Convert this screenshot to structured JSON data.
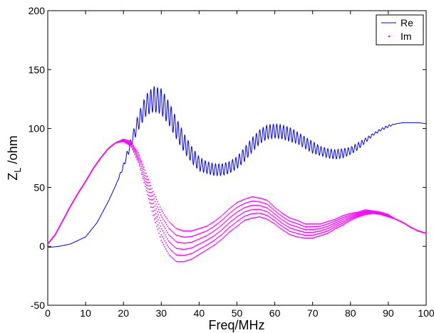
{
  "chart_data": {
    "type": "line",
    "title": "",
    "xlabel": "Freq/MHz",
    "ylabel_main": "Z",
    "ylabel_sub": "L",
    "ylabel_rest": " /ohm",
    "xlim": [
      0,
      100
    ],
    "ylim": [
      -50,
      200
    ],
    "xticks": [
      0,
      10,
      20,
      30,
      40,
      50,
      60,
      70,
      80,
      90,
      100
    ],
    "yticks": [
      -50,
      0,
      50,
      100,
      150,
      200
    ],
    "grid": false,
    "legend_position": "top-right",
    "series": [
      {
        "name": "Re",
        "color": "#0000ff",
        "style": "line",
        "x": [
          0,
          3,
          6,
          10,
          13,
          16,
          18,
          20,
          22,
          24,
          26,
          28,
          30,
          32,
          34,
          36,
          38,
          40,
          42,
          44,
          46,
          48,
          50,
          52,
          54,
          56,
          58,
          60,
          62,
          64,
          66,
          68,
          70,
          72,
          74,
          76,
          78,
          80,
          82,
          84,
          86,
          88,
          90,
          92,
          94,
          96,
          98,
          100
        ],
        "y": [
          -1,
          0,
          2,
          8,
          20,
          38,
          52,
          68,
          88,
          106,
          120,
          125,
          123,
          113,
          100,
          88,
          78,
          70,
          67,
          65,
          65,
          67,
          71,
          78,
          86,
          93,
          97,
          98,
          97,
          95,
          92,
          88,
          84,
          81,
          79,
          78,
          79,
          81,
          85,
          90,
          95,
          99,
          102,
          104,
          105,
          105,
          105,
          104
        ],
        "osc_amp": [
          0,
          0,
          0,
          0,
          0,
          0,
          0,
          2,
          4,
          7,
          9,
          11,
          11,
          10,
          9,
          8,
          7,
          6,
          5,
          5,
          5,
          5,
          5,
          6,
          6,
          6,
          6,
          6,
          6,
          6,
          5,
          5,
          5,
          4,
          4,
          4,
          4,
          3,
          3,
          2,
          1,
          1,
          1,
          0,
          0,
          0,
          0,
          0
        ]
      },
      {
        "name": "Im",
        "color": "#ff00ff",
        "style": "dots",
        "x": [
          0,
          2,
          4,
          6,
          8,
          10,
          12,
          14,
          16,
          18,
          20,
          22,
          24,
          26,
          28,
          30,
          32,
          34,
          36,
          38,
          40,
          42,
          44,
          46,
          48,
          50,
          52,
          54,
          56,
          58,
          60,
          62,
          64,
          66,
          68,
          70,
          72,
          74,
          76,
          78,
          80,
          82,
          84,
          86,
          88,
          90,
          92,
          94,
          96,
          98,
          100
        ],
        "y": [
          2,
          10,
          22,
          34,
          45,
          55,
          66,
          75,
          83,
          88,
          90,
          87,
          75,
          55,
          35,
          18,
          7,
          1,
          0,
          1,
          4,
          7,
          11,
          16,
          22,
          27,
          31,
          33,
          33,
          31,
          26,
          21,
          17,
          15,
          13,
          13,
          14,
          16,
          19,
          22,
          25,
          27,
          29,
          29,
          28,
          26,
          23,
          20,
          16,
          13,
          11
        ],
        "spread": [
          0,
          0,
          0,
          0,
          0,
          0,
          0,
          0,
          0,
          0,
          1,
          2,
          4,
          7,
          10,
          13,
          14,
          14,
          13,
          12,
          11,
          10,
          10,
          10,
          10,
          10,
          9,
          9,
          8,
          8,
          7,
          7,
          7,
          7,
          6,
          6,
          5,
          5,
          4,
          4,
          3,
          2,
          2,
          1,
          1,
          1,
          0,
          0,
          0,
          0,
          0
        ]
      }
    ]
  }
}
